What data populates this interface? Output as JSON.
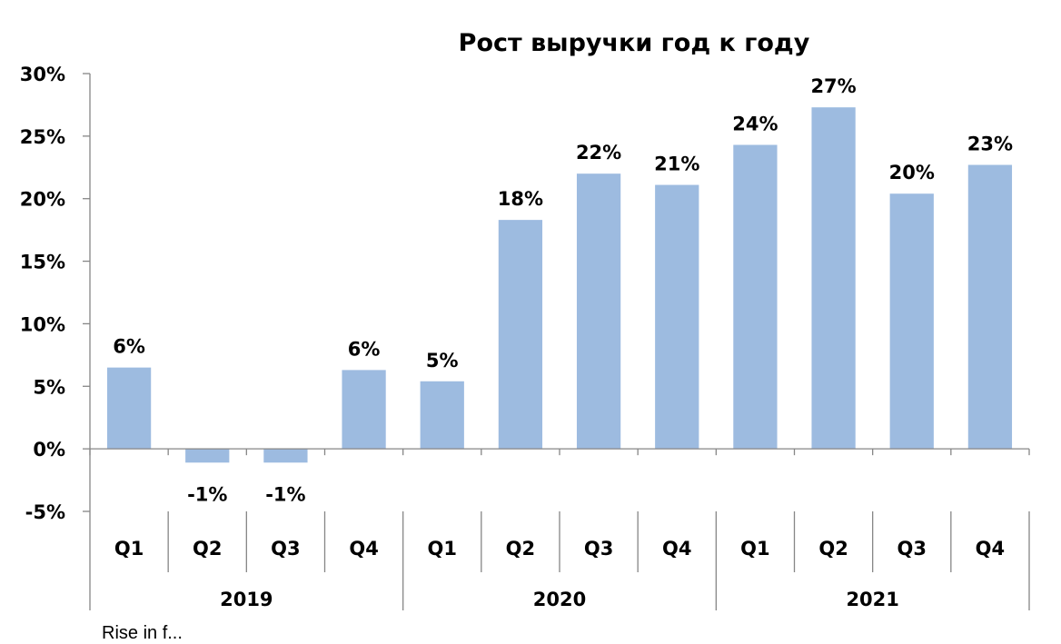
{
  "chart_data": {
    "type": "bar",
    "title": "Рост выручки год к году",
    "xlabel": "",
    "ylabel": "",
    "ylim": [
      -0.05,
      0.3
    ],
    "y_ticks": [
      {
        "value": 0.3,
        "label": "30%"
      },
      {
        "value": 0.25,
        "label": "25%"
      },
      {
        "value": 0.2,
        "label": "20%"
      },
      {
        "value": 0.15,
        "label": "15%"
      },
      {
        "value": 0.1,
        "label": "10%"
      },
      {
        "value": 0.05,
        "label": "5%"
      },
      {
        "value": 0.0,
        "label": "0%"
      },
      {
        "value": -0.05,
        "label": "-5%"
      }
    ],
    "categories": [
      "Q1",
      "Q2",
      "Q3",
      "Q4",
      "Q1",
      "Q2",
      "Q3",
      "Q4",
      "Q1",
      "Q2",
      "Q3",
      "Q4"
    ],
    "groups": [
      {
        "label": "2019",
        "count": 4
      },
      {
        "label": "2020",
        "count": 4
      },
      {
        "label": "2021",
        "count": 4
      }
    ],
    "values": [
      0.065,
      -0.011,
      -0.011,
      0.063,
      0.054,
      0.183,
      0.22,
      0.211,
      0.243,
      0.273,
      0.204,
      0.227
    ],
    "data_labels": [
      "6%",
      "-1%",
      "-1%",
      "6%",
      "5%",
      "18%",
      "22%",
      "21%",
      "24%",
      "27%",
      "20%",
      "23%"
    ],
    "bar_color": "#9DBBE0",
    "grid": false,
    "legend": "none"
  },
  "footer_text": "Rise in f..."
}
